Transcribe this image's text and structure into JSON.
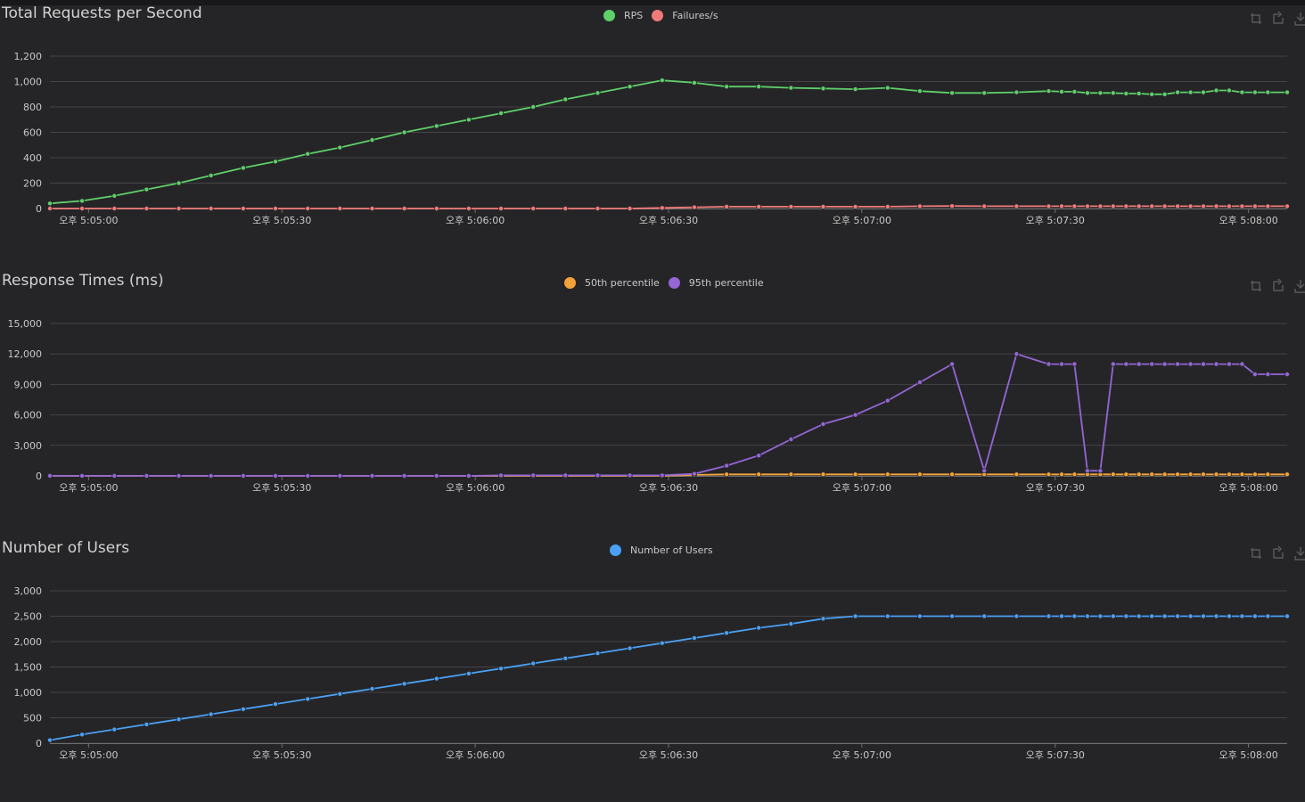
{
  "colors": {
    "background": "#252527",
    "grid": "#444446",
    "axis_text": "#c8c8c8",
    "rps": "#5fcf6a",
    "failures": "#f07a7a",
    "p50": "#f3a23a",
    "p95": "#9466d6",
    "users": "#4aa0f4"
  },
  "toolbox": {
    "icons": [
      "zoom-icon",
      "zoom-reset-icon",
      "save-image-icon"
    ]
  },
  "chart_data": [
    {
      "type": "line",
      "title": "Total Requests per Second",
      "xlabel": "",
      "ylabel": "",
      "x_tick_labels": [
        "오후 5:05:00",
        "오후 5:05:30",
        "오후 5:06:00",
        "오후 5:06:30",
        "오후 5:07:00",
        "오후 5:07:30",
        "오후 5:08:00"
      ],
      "x_ticks_sec": [
        0,
        30,
        60,
        90,
        120,
        150,
        180
      ],
      "x_domain_sec": [
        -6,
        186
      ],
      "y_tick_labels": [
        "0",
        "200",
        "400",
        "600",
        "800",
        "1,000",
        "1,200"
      ],
      "y_ticks": [
        0,
        200,
        400,
        600,
        800,
        1000,
        1200
      ],
      "ylim": [
        0,
        1200
      ],
      "grid": true,
      "legend": "top-center",
      "series": [
        {
          "name": "RPS",
          "color": "#5fcf6a",
          "x": [
            -6,
            -1,
            4,
            9,
            14,
            19,
            24,
            29,
            34,
            39,
            44,
            49,
            54,
            59,
            64,
            69,
            74,
            79,
            84,
            89,
            94,
            99,
            104,
            109,
            114,
            119,
            124,
            129,
            134,
            139,
            144,
            149,
            151,
            153,
            155,
            157,
            159,
            161,
            163,
            165,
            167,
            169,
            171,
            173,
            175,
            177,
            179,
            181,
            183,
            186
          ],
          "y": [
            40,
            60,
            100,
            150,
            200,
            260,
            320,
            370,
            430,
            480,
            540,
            600,
            650,
            700,
            750,
            800,
            860,
            910,
            960,
            1010,
            990,
            960,
            960,
            950,
            945,
            940,
            950,
            925,
            910,
            910,
            915,
            925,
            920,
            920,
            910,
            910,
            910,
            905,
            905,
            900,
            900,
            915,
            915,
            915,
            930,
            930,
            915,
            915,
            915,
            915
          ]
        },
        {
          "name": "Failures/s",
          "color": "#f07a7a",
          "x": [
            -6,
            -1,
            4,
            9,
            14,
            19,
            24,
            29,
            34,
            39,
            44,
            49,
            54,
            59,
            64,
            69,
            74,
            79,
            84,
            89,
            94,
            99,
            104,
            109,
            114,
            119,
            124,
            129,
            134,
            139,
            144,
            149,
            151,
            153,
            155,
            157,
            159,
            161,
            163,
            165,
            167,
            169,
            171,
            173,
            175,
            177,
            179,
            181,
            183,
            186
          ],
          "y": [
            0,
            0,
            0,
            0,
            0,
            0,
            0,
            0,
            0,
            0,
            0,
            0,
            0,
            0,
            0,
            0,
            0,
            0,
            0,
            5,
            10,
            15,
            15,
            15,
            15,
            15,
            15,
            18,
            20,
            18,
            18,
            18,
            18,
            18,
            18,
            18,
            18,
            18,
            18,
            18,
            18,
            18,
            18,
            18,
            18,
            18,
            18,
            18,
            18,
            18
          ]
        }
      ]
    },
    {
      "type": "line",
      "title": "Response Times (ms)",
      "xlabel": "",
      "ylabel": "",
      "x_tick_labels": [
        "오후 5:05:00",
        "오후 5:05:30",
        "오후 5:06:00",
        "오후 5:06:30",
        "오후 5:07:00",
        "오후 5:07:30",
        "오후 5:08:00"
      ],
      "x_ticks_sec": [
        0,
        30,
        60,
        90,
        120,
        150,
        180
      ],
      "x_domain_sec": [
        -6,
        186
      ],
      "y_tick_labels": [
        "0",
        "3,000",
        "6,000",
        "9,000",
        "12,000",
        "15,000"
      ],
      "y_ticks": [
        0,
        3000,
        6000,
        9000,
        12000,
        15000
      ],
      "ylim": [
        0,
        15000
      ],
      "grid": true,
      "legend": "top-center",
      "series": [
        {
          "name": "50th percentile",
          "color": "#f3a23a",
          "x": [
            -6,
            -1,
            4,
            9,
            14,
            19,
            24,
            29,
            34,
            39,
            44,
            49,
            54,
            59,
            64,
            69,
            74,
            79,
            84,
            89,
            94,
            99,
            104,
            109,
            114,
            119,
            124,
            129,
            134,
            139,
            144,
            149,
            151,
            153,
            155,
            157,
            159,
            161,
            163,
            165,
            167,
            169,
            171,
            173,
            175,
            177,
            179,
            181,
            183,
            186
          ],
          "y": [
            0,
            0,
            0,
            0,
            0,
            0,
            0,
            0,
            0,
            0,
            0,
            0,
            0,
            0,
            0,
            0,
            0,
            0,
            0,
            0,
            100,
            150,
            150,
            150,
            150,
            150,
            150,
            150,
            150,
            150,
            150,
            150,
            150,
            150,
            150,
            150,
            150,
            150,
            150,
            150,
            150,
            150,
            150,
            150,
            150,
            150,
            150,
            150,
            150,
            150
          ]
        },
        {
          "name": "95th percentile",
          "color": "#9466d6",
          "x": [
            -6,
            -1,
            4,
            9,
            14,
            19,
            24,
            29,
            34,
            39,
            44,
            49,
            54,
            59,
            64,
            69,
            74,
            79,
            84,
            89,
            94,
            99,
            104,
            109,
            114,
            119,
            124,
            129,
            134,
            139,
            144,
            149,
            151,
            153,
            155,
            157,
            159,
            161,
            163,
            165,
            167,
            169,
            171,
            173,
            175,
            177,
            179,
            181,
            183,
            186
          ],
          "y": [
            0,
            0,
            0,
            0,
            0,
            0,
            0,
            0,
            0,
            0,
            0,
            0,
            0,
            0,
            50,
            50,
            50,
            50,
            50,
            50,
            200,
            1000,
            2000,
            3600,
            5100,
            6000,
            7400,
            9200,
            11000,
            500,
            12000,
            11000,
            11000,
            11000,
            500,
            500,
            11000,
            11000,
            11000,
            11000,
            11000,
            11000,
            11000,
            11000,
            11000,
            11000,
            11000,
            10000,
            10000,
            10000
          ]
        }
      ]
    },
    {
      "type": "line",
      "title": "Number of Users",
      "xlabel": "",
      "ylabel": "",
      "x_tick_labels": [
        "오후 5:05:00",
        "오후 5:05:30",
        "오후 5:06:00",
        "오후 5:06:30",
        "오후 5:07:00",
        "오후 5:07:30",
        "오후 5:08:00"
      ],
      "x_ticks_sec": [
        0,
        30,
        60,
        90,
        120,
        150,
        180
      ],
      "x_domain_sec": [
        -6,
        186
      ],
      "y_tick_labels": [
        "0",
        "500",
        "1,000",
        "1,500",
        "2,000",
        "2,500",
        "3,000"
      ],
      "y_ticks": [
        0,
        500,
        1000,
        1500,
        2000,
        2500,
        3000
      ],
      "ylim": [
        0,
        3000
      ],
      "grid": true,
      "legend": "top-center",
      "series": [
        {
          "name": "Number of Users",
          "color": "#4aa0f4",
          "x": [
            -6,
            -1,
            4,
            9,
            14,
            19,
            24,
            29,
            34,
            39,
            44,
            49,
            54,
            59,
            64,
            69,
            74,
            79,
            84,
            89,
            94,
            99,
            104,
            109,
            114,
            119,
            124,
            129,
            134,
            139,
            144,
            149,
            151,
            153,
            155,
            157,
            159,
            161,
            163,
            165,
            167,
            169,
            171,
            173,
            175,
            177,
            179,
            181,
            183,
            186
          ],
          "y": [
            60,
            170,
            270,
            370,
            470,
            570,
            670,
            770,
            870,
            970,
            1070,
            1170,
            1270,
            1370,
            1470,
            1570,
            1670,
            1770,
            1870,
            1970,
            2070,
            2170,
            2270,
            2350,
            2450,
            2500,
            2500,
            2500,
            2500,
            2500,
            2500,
            2500,
            2500,
            2500,
            2500,
            2500,
            2500,
            2500,
            2500,
            2500,
            2500,
            2500,
            2500,
            2500,
            2500,
            2500,
            2500,
            2500,
            2500,
            2500
          ]
        }
      ]
    }
  ]
}
